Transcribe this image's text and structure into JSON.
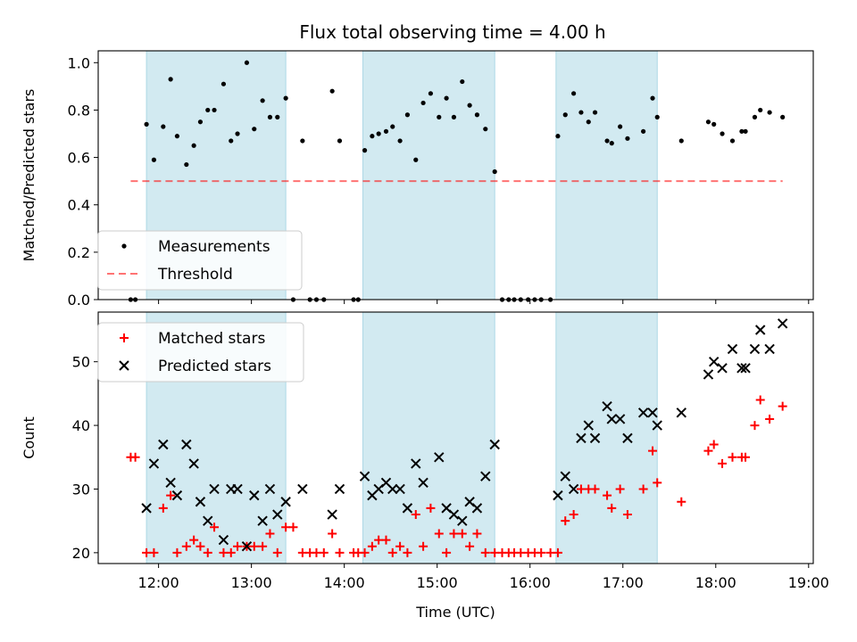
{
  "title": "Flux total observing time = 4.00 h",
  "colors": {
    "shade": "#add8e6",
    "measurement": "#000000",
    "threshold": "#ff0000",
    "matched": "#ff0000",
    "predicted": "#000000"
  },
  "chart_data": [
    {
      "type": "scatter",
      "ylabel": "Matched/Predicted stars",
      "xlim": [
        11.35,
        19.05
      ],
      "ylim": [
        0,
        1.05
      ],
      "yticks": [
        "0.0",
        "0.2",
        "0.4",
        "0.6",
        "0.8",
        "1.0"
      ],
      "ytick_values": [
        0,
        0.2,
        0.4,
        0.6,
        0.8,
        1.0
      ],
      "shaded_intervals": [
        [
          11.87,
          13.37
        ],
        [
          14.2,
          15.62
        ],
        [
          16.28,
          17.37
        ]
      ],
      "threshold": {
        "y": 0.5,
        "x_range": [
          11.7,
          18.72
        ]
      },
      "legend": {
        "position": "lower-left",
        "entries": [
          "Measurements",
          "Threshold"
        ]
      },
      "series": [
        {
          "name": "Measurements",
          "x": [
            11.7,
            11.75,
            11.87,
            11.95,
            12.05,
            12.13,
            12.2,
            12.3,
            12.38,
            12.45,
            12.53,
            12.6,
            12.7,
            12.78,
            12.85,
            12.95,
            13.03,
            13.12,
            13.2,
            13.28,
            13.37,
            13.45,
            13.55,
            13.63,
            13.7,
            13.78,
            13.87,
            13.95,
            14.1,
            14.15,
            14.22,
            14.3,
            14.37,
            14.45,
            14.52,
            14.6,
            14.68,
            14.77,
            14.85,
            14.93,
            15.02,
            15.1,
            15.18,
            15.27,
            15.35,
            15.43,
            15.52,
            15.62,
            15.7,
            15.77,
            15.83,
            15.9,
            15.98,
            16.05,
            16.12,
            16.22,
            16.3,
            16.38,
            16.47,
            16.55,
            16.63,
            16.7,
            16.83,
            16.88,
            16.97,
            17.05,
            17.22,
            17.32,
            17.37,
            17.63,
            17.92,
            17.98,
            18.07,
            18.18,
            18.28,
            18.32,
            18.42,
            18.48,
            18.58,
            18.72
          ],
          "y": [
            0,
            0,
            0.74,
            0.59,
            0.73,
            0.93,
            0.69,
            0.57,
            0.65,
            0.75,
            0.8,
            0.8,
            0.91,
            0.67,
            0.7,
            1.0,
            0.72,
            0.84,
            0.77,
            0.77,
            0.85,
            0,
            0.67,
            0,
            0,
            0,
            0.88,
            0.67,
            0,
            0,
            0.63,
            0.69,
            0.7,
            0.71,
            0.73,
            0.67,
            0.78,
            0.59,
            0.83,
            0.87,
            0.77,
            0.85,
            0.77,
            0.92,
            0.82,
            0.78,
            0.72,
            0.54,
            0,
            0,
            0,
            0,
            0,
            0,
            0,
            0,
            0.69,
            0.78,
            0.87,
            0.79,
            0.75,
            0.79,
            0.67,
            0.66,
            0.73,
            0.68,
            0.71,
            0.85,
            0.77,
            0.67,
            0.75,
            0.74,
            0.7,
            0.67,
            0.71,
            0.71,
            0.77,
            0.8,
            0.79,
            0.77
          ]
        }
      ]
    },
    {
      "type": "scatter",
      "xlabel": "Time (UTC)",
      "ylabel": "Count",
      "xlim": [
        11.35,
        19.05
      ],
      "ylim": [
        18.3,
        57.8
      ],
      "xticks": [
        "12:00",
        "13:00",
        "14:00",
        "15:00",
        "16:00",
        "17:00",
        "18:00",
        "19:00"
      ],
      "xtick_values": [
        12,
        13,
        14,
        15,
        16,
        17,
        18,
        19
      ],
      "yticks": [
        "20",
        "30",
        "40",
        "50"
      ],
      "ytick_values": [
        20,
        30,
        40,
        50
      ],
      "shaded_intervals": [
        [
          11.87,
          13.37
        ],
        [
          14.2,
          15.62
        ],
        [
          16.28,
          17.37
        ]
      ],
      "legend": {
        "position": "upper-left",
        "entries": [
          "Matched stars",
          "Predicted stars"
        ]
      },
      "series": [
        {
          "name": "Matched stars",
          "marker": "plus",
          "x": [
            11.7,
            11.75,
            11.87,
            11.95,
            12.05,
            12.13,
            12.2,
            12.3,
            12.38,
            12.45,
            12.53,
            12.6,
            12.7,
            12.78,
            12.85,
            12.95,
            13.03,
            13.12,
            13.2,
            13.28,
            13.37,
            13.45,
            13.55,
            13.63,
            13.7,
            13.78,
            13.87,
            13.95,
            14.1,
            14.15,
            14.22,
            14.3,
            14.37,
            14.45,
            14.52,
            14.6,
            14.68,
            14.77,
            14.85,
            14.93,
            15.02,
            15.1,
            15.18,
            15.27,
            15.35,
            15.43,
            15.52,
            15.62,
            15.7,
            15.77,
            15.83,
            15.9,
            15.98,
            16.05,
            16.12,
            16.22,
            16.3,
            16.38,
            16.47,
            16.55,
            16.63,
            16.7,
            16.83,
            16.88,
            16.97,
            17.05,
            17.22,
            17.32,
            17.37,
            17.63,
            17.92,
            17.98,
            18.07,
            18.18,
            18.28,
            18.32,
            18.42,
            18.48,
            18.58,
            18.72
          ],
          "y": [
            35,
            35,
            20,
            20,
            27,
            29,
            20,
            21,
            22,
            21,
            20,
            24,
            20,
            20,
            21,
            21,
            21,
            21,
            23,
            20,
            24,
            24,
            20,
            20,
            20,
            20,
            23,
            20,
            20,
            20,
            20,
            21,
            22,
            22,
            20,
            21,
            20,
            26,
            21,
            27,
            23,
            20,
            23,
            23,
            21,
            23,
            20,
            20,
            20,
            20,
            20,
            20,
            20,
            20,
            20,
            20,
            20,
            25,
            26,
            30,
            30,
            30,
            29,
            27,
            30,
            26,
            30,
            36,
            31,
            28,
            36,
            37,
            34,
            35,
            35,
            35,
            40,
            44,
            41,
            43
          ]
        },
        {
          "name": "Predicted stars",
          "marker": "x",
          "x": [
            11.87,
            11.95,
            12.05,
            12.13,
            12.2,
            12.3,
            12.38,
            12.45,
            12.53,
            12.6,
            12.7,
            12.78,
            12.85,
            12.95,
            13.03,
            13.12,
            13.2,
            13.28,
            13.37,
            13.55,
            13.87,
            13.95,
            14.22,
            14.3,
            14.37,
            14.45,
            14.52,
            14.6,
            14.68,
            14.77,
            14.85,
            15.02,
            15.1,
            15.18,
            15.27,
            15.35,
            15.43,
            15.52,
            15.62,
            16.3,
            16.38,
            16.47,
            16.55,
            16.63,
            16.7,
            16.83,
            16.88,
            16.97,
            17.05,
            17.22,
            17.32,
            17.37,
            17.63,
            17.92,
            17.98,
            18.07,
            18.18,
            18.28,
            18.32,
            18.42,
            18.48,
            18.58,
            18.72
          ],
          "y": [
            27,
            34,
            37,
            31,
            29,
            37,
            34,
            28,
            25,
            30,
            22,
            30,
            30,
            21,
            29,
            25,
            30,
            26,
            28,
            30,
            26,
            30,
            32,
            29,
            30,
            31,
            30,
            30,
            27,
            34,
            31,
            35,
            27,
            26,
            25,
            28,
            27,
            32,
            37,
            29,
            32,
            30,
            38,
            40,
            38,
            43,
            41,
            41,
            38,
            42,
            42,
            40,
            42,
            48,
            50,
            49,
            52,
            49,
            49,
            52,
            55,
            52,
            56
          ]
        }
      ]
    }
  ]
}
